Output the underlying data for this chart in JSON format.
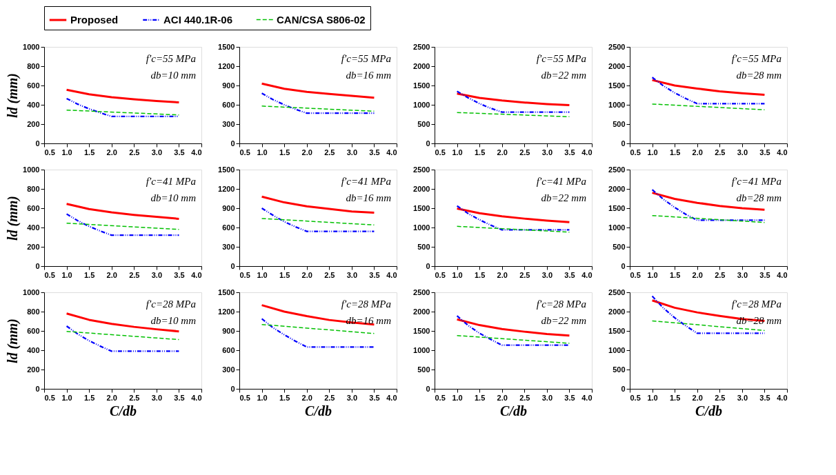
{
  "chart_data": [
    {
      "type": "line",
      "annotations": [
        "f′c=55 MPa",
        "db=10 mm"
      ],
      "ylabel": "ld (mm)",
      "xlim": [
        0.5,
        4.0
      ],
      "xticks": [
        0.5,
        {
          "value": 1,
          "label": "1.0"
        },
        1.5,
        {
          "value": 2,
          "label": "2.0"
        },
        2.5,
        {
          "value": 3,
          "label": "3.0"
        },
        3.5,
        {
          "value": 4,
          "label": "4.0"
        }
      ],
      "ylim": [
        0,
        1000
      ],
      "yticks": [
        0,
        200,
        400,
        600,
        800,
        1000
      ],
      "grid": false,
      "legend": "top",
      "marker": "none",
      "series": [
        {
          "name": "Proposed",
          "color": "#ff0000",
          "line_style": "solid",
          "x": [
            1.0,
            1.5,
            2.0,
            2.5,
            3.0,
            3.5
          ],
          "values": [
            555,
            509,
            479,
            457,
            439,
            425
          ]
        },
        {
          "name": "ACI 440.1R-06",
          "color": "#0000ff",
          "line_style": "dashdot",
          "x": [
            1.0,
            1.25,
            1.5,
            1.75,
            2.0,
            3.5
          ],
          "values": [
            465,
            406,
            358,
            317,
            280,
            280
          ]
        },
        {
          "name": "CAN/CSA S806-02",
          "color": "#00c000",
          "line_style": "dashed",
          "x": [
            1.0,
            3.5
          ],
          "values": [
            345,
            295
          ]
        }
      ]
    },
    {
      "type": "line",
      "annotations": [
        "f′c=55 MPa",
        "db=16 mm"
      ],
      "xlim": [
        0.5,
        4.0
      ],
      "xticks": [
        0.5,
        {
          "value": 1,
          "label": "1.0"
        },
        1.5,
        {
          "value": 2,
          "label": "2.0"
        },
        2.5,
        {
          "value": 3,
          "label": "3.0"
        },
        3.5,
        {
          "value": 4,
          "label": "4.0"
        }
      ],
      "ylim": [
        0,
        1500
      ],
      "yticks": [
        0,
        300,
        600,
        900,
        1200,
        1500
      ],
      "grid": false,
      "marker": "none",
      "series": [
        {
          "name": "Proposed",
          "color": "#ff0000",
          "line_style": "solid",
          "x": [
            1.0,
            1.5,
            2.0,
            2.5,
            3.0,
            3.5
          ],
          "values": [
            930,
            850,
            800,
            770,
            740,
            710
          ]
        },
        {
          "name": "ACI 440.1R-06",
          "color": "#0000ff",
          "line_style": "dashdot",
          "x": [
            1.0,
            1.25,
            1.5,
            1.75,
            2.0,
            3.5
          ],
          "values": [
            780,
            680,
            600,
            530,
            470,
            470
          ]
        },
        {
          "name": "CAN/CSA S806-02",
          "color": "#00c000",
          "line_style": "dashed",
          "x": [
            1.0,
            3.5
          ],
          "values": [
            580,
            500
          ]
        }
      ]
    },
    {
      "type": "line",
      "annotations": [
        "f′c=55 MPa",
        "db=22 mm"
      ],
      "xlim": [
        0.5,
        4.0
      ],
      "xticks": [
        0.5,
        {
          "value": 1,
          "label": "1.0"
        },
        1.5,
        {
          "value": 2,
          "label": "2.0"
        },
        2.5,
        {
          "value": 3,
          "label": "3.0"
        },
        3.5,
        {
          "value": 4,
          "label": "4.0"
        }
      ],
      "ylim": [
        0,
        2500
      ],
      "yticks": [
        0,
        500,
        1000,
        1500,
        2000,
        2500
      ],
      "grid": false,
      "marker": "none",
      "series": [
        {
          "name": "Proposed",
          "color": "#ff0000",
          "line_style": "solid",
          "x": [
            1.0,
            1.5,
            2.0,
            2.5,
            3.0,
            3.5
          ],
          "values": [
            1290,
            1180,
            1110,
            1060,
            1020,
            990
          ]
        },
        {
          "name": "ACI 440.1R-06",
          "color": "#0000ff",
          "line_style": "dashdot",
          "x": [
            1.0,
            1.25,
            1.5,
            1.75,
            2.0,
            3.5
          ],
          "values": [
            1350,
            1180,
            1030,
            910,
            810,
            810
          ]
        },
        {
          "name": "CAN/CSA S806-02",
          "color": "#00c000",
          "line_style": "dashed",
          "x": [
            1.0,
            3.5
          ],
          "values": [
            800,
            690
          ]
        }
      ]
    },
    {
      "type": "line",
      "annotations": [
        "f′c=55 MPa",
        "db=28 mm"
      ],
      "xlim": [
        0.5,
        4.0
      ],
      "xticks": [
        0.5,
        {
          "value": 1,
          "label": "1.0"
        },
        1.5,
        {
          "value": 2,
          "label": "2.0"
        },
        2.5,
        {
          "value": 3,
          "label": "3.0"
        },
        3.5,
        {
          "value": 4,
          "label": "4.0"
        }
      ],
      "ylim": [
        0,
        2500
      ],
      "yticks": [
        0,
        500,
        1000,
        1500,
        2000,
        2500
      ],
      "grid": false,
      "marker": "none",
      "series": [
        {
          "name": "Proposed",
          "color": "#ff0000",
          "line_style": "solid",
          "x": [
            1.0,
            1.5,
            2.0,
            2.5,
            3.0,
            3.5
          ],
          "values": [
            1640,
            1500,
            1420,
            1350,
            1300,
            1260
          ]
        },
        {
          "name": "ACI 440.1R-06",
          "color": "#0000ff",
          "line_style": "dashdot",
          "x": [
            1.0,
            1.25,
            1.5,
            1.75,
            2.0,
            3.5
          ],
          "values": [
            1710,
            1490,
            1310,
            1160,
            1030,
            1030
          ]
        },
        {
          "name": "CAN/CSA S806-02",
          "color": "#00c000",
          "line_style": "dashed",
          "x": [
            1.0,
            3.5
          ],
          "values": [
            1020,
            870
          ]
        }
      ]
    },
    {
      "type": "line",
      "annotations": [
        "f′c=41 MPa",
        "db=10 mm"
      ],
      "ylabel": "ld (mm)",
      "xlim": [
        0.5,
        4.0
      ],
      "xticks": [
        0.5,
        {
          "value": 1,
          "label": "1.0"
        },
        1.5,
        {
          "value": 2,
          "label": "2.0"
        },
        2.5,
        {
          "value": 3,
          "label": "3.0"
        },
        3.5,
        {
          "value": 4,
          "label": "4.0"
        }
      ],
      "ylim": [
        0,
        1000
      ],
      "yticks": [
        0,
        200,
        400,
        600,
        800,
        1000
      ],
      "grid": false,
      "marker": "none",
      "series": [
        {
          "name": "Proposed",
          "color": "#ff0000",
          "line_style": "solid",
          "x": [
            1.0,
            1.5,
            2.0,
            2.5,
            3.0,
            3.5
          ],
          "values": [
            645,
            591,
            557,
            531,
            510,
            490
          ]
        },
        {
          "name": "ACI 440.1R-06",
          "color": "#0000ff",
          "line_style": "dashdot",
          "x": [
            1.0,
            1.25,
            1.5,
            1.75,
            2.0,
            3.5
          ],
          "values": [
            540,
            470,
            412,
            364,
            320,
            320
          ]
        },
        {
          "name": "CAN/CSA S806-02",
          "color": "#00c000",
          "line_style": "dashed",
          "x": [
            1.0,
            3.5
          ],
          "values": [
            445,
            380
          ]
        }
      ]
    },
    {
      "type": "line",
      "annotations": [
        "f′c=41 MPa",
        "db=16 mm"
      ],
      "xlim": [
        0.5,
        4.0
      ],
      "xticks": [
        0.5,
        {
          "value": 1,
          "label": "1.0"
        },
        1.5,
        {
          "value": 2,
          "label": "2.0"
        },
        2.5,
        {
          "value": 3,
          "label": "3.0"
        },
        3.5,
        {
          "value": 4,
          "label": "4.0"
        }
      ],
      "ylim": [
        0,
        1500
      ],
      "yticks": [
        0,
        300,
        600,
        900,
        1200,
        1500
      ],
      "grid": false,
      "marker": "none",
      "series": [
        {
          "name": "Proposed",
          "color": "#ff0000",
          "line_style": "solid",
          "x": [
            1.0,
            1.5,
            2.0,
            2.5,
            3.0,
            3.5
          ],
          "values": [
            1080,
            990,
            930,
            890,
            850,
            830
          ]
        },
        {
          "name": "ACI 440.1R-06",
          "color": "#0000ff",
          "line_style": "dashdot",
          "x": [
            1.0,
            1.25,
            1.5,
            1.75,
            2.0,
            3.5
          ],
          "values": [
            900,
            790,
            690,
            610,
            540,
            540
          ]
        },
        {
          "name": "CAN/CSA S806-02",
          "color": "#00c000",
          "line_style": "dashed",
          "x": [
            1.0,
            3.5
          ],
          "values": [
            740,
            640
          ]
        }
      ]
    },
    {
      "type": "line",
      "annotations": [
        "f′c=41 MPa",
        "db=22 mm"
      ],
      "xlim": [
        0.5,
        4.0
      ],
      "xticks": [
        0.5,
        {
          "value": 1,
          "label": "1.0"
        },
        1.5,
        {
          "value": 2,
          "label": "2.0"
        },
        2.5,
        {
          "value": 3,
          "label": "3.0"
        },
        3.5,
        {
          "value": 4,
          "label": "4.0"
        }
      ],
      "ylim": [
        0,
        2500
      ],
      "yticks": [
        0,
        500,
        1000,
        1500,
        2000,
        2500
      ],
      "grid": false,
      "marker": "none",
      "series": [
        {
          "name": "Proposed",
          "color": "#ff0000",
          "line_style": "solid",
          "x": [
            1.0,
            1.5,
            2.0,
            2.5,
            3.0,
            3.5
          ],
          "values": [
            1490,
            1370,
            1290,
            1230,
            1180,
            1140
          ]
        },
        {
          "name": "ACI 440.1R-06",
          "color": "#0000ff",
          "line_style": "dashdot",
          "x": [
            1.0,
            1.25,
            1.5,
            1.75,
            2.0,
            3.5
          ],
          "values": [
            1560,
            1360,
            1200,
            1060,
            940,
            940
          ]
        },
        {
          "name": "CAN/CSA S806-02",
          "color": "#00c000",
          "line_style": "dashed",
          "x": [
            1.0,
            3.5
          ],
          "values": [
            1030,
            880
          ]
        }
      ]
    },
    {
      "type": "line",
      "annotations": [
        "f′c=41 MPa",
        "db=28 mm"
      ],
      "xlim": [
        0.5,
        4.0
      ],
      "xticks": [
        0.5,
        {
          "value": 1,
          "label": "1.0"
        },
        1.5,
        {
          "value": 2,
          "label": "2.0"
        },
        2.5,
        {
          "value": 3,
          "label": "3.0"
        },
        3.5,
        {
          "value": 4,
          "label": "4.0"
        }
      ],
      "ylim": [
        0,
        2500
      ],
      "yticks": [
        0,
        500,
        1000,
        1500,
        2000,
        2500
      ],
      "grid": false,
      "marker": "none",
      "series": [
        {
          "name": "Proposed",
          "color": "#ff0000",
          "line_style": "solid",
          "x": [
            1.0,
            1.5,
            2.0,
            2.5,
            3.0,
            3.5
          ],
          "values": [
            1900,
            1740,
            1640,
            1560,
            1500,
            1460
          ]
        },
        {
          "name": "ACI 440.1R-06",
          "color": "#0000ff",
          "line_style": "dashdot",
          "x": [
            1.0,
            1.25,
            1.5,
            1.75,
            2.0,
            3.5
          ],
          "values": [
            1980,
            1730,
            1520,
            1340,
            1190,
            1190
          ]
        },
        {
          "name": "CAN/CSA S806-02",
          "color": "#00c000",
          "line_style": "dashed",
          "x": [
            1.0,
            3.5
          ],
          "values": [
            1310,
            1130
          ]
        }
      ]
    },
    {
      "type": "line",
      "annotations": [
        "f′c=28 MPa",
        "db=10 mm"
      ],
      "ylabel": "ld (mm)",
      "xlabel": "C/db",
      "xlim": [
        0.5,
        4.0
      ],
      "xticks": [
        0.5,
        {
          "value": 1,
          "label": "1.0"
        },
        1.5,
        {
          "value": 2,
          "label": "2.0"
        },
        2.5,
        {
          "value": 3,
          "label": "3.0"
        },
        3.5,
        {
          "value": 4,
          "label": "4.0"
        }
      ],
      "ylim": [
        0,
        1000
      ],
      "yticks": [
        0,
        200,
        400,
        600,
        800,
        1000
      ],
      "grid": false,
      "marker": "none",
      "series": [
        {
          "name": "Proposed",
          "color": "#ff0000",
          "line_style": "solid",
          "x": [
            1.0,
            1.5,
            2.0,
            2.5,
            3.0,
            3.5
          ],
          "values": [
            780,
            715,
            673,
            642,
            617,
            595
          ]
        },
        {
          "name": "ACI 440.1R-06",
          "color": "#0000ff",
          "line_style": "dashdot",
          "x": [
            1.0,
            1.25,
            1.5,
            1.75,
            2.0,
            3.5
          ],
          "values": [
            650,
            567,
            499,
            442,
            390,
            390
          ]
        },
        {
          "name": "CAN/CSA S806-02",
          "color": "#00c000",
          "line_style": "dashed",
          "x": [
            1.0,
            3.5
          ],
          "values": [
            595,
            510
          ]
        }
      ]
    },
    {
      "type": "line",
      "annotations": [
        "f′c=28 MPa",
        "db=16 mm"
      ],
      "xlabel": "C/db",
      "xlim": [
        0.5,
        4.0
      ],
      "xticks": [
        0.5,
        {
          "value": 1,
          "label": "1.0"
        },
        1.5,
        {
          "value": 2,
          "label": "2.0"
        },
        2.5,
        {
          "value": 3,
          "label": "3.0"
        },
        3.5,
        {
          "value": 4,
          "label": "4.0"
        }
      ],
      "ylim": [
        0,
        1500
      ],
      "yticks": [
        0,
        300,
        600,
        900,
        1200,
        1500
      ],
      "grid": false,
      "marker": "none",
      "series": [
        {
          "name": "Proposed",
          "color": "#ff0000",
          "line_style": "solid",
          "x": [
            1.0,
            1.5,
            2.0,
            2.5,
            3.0,
            3.5
          ],
          "values": [
            1300,
            1200,
            1130,
            1070,
            1030,
            1000
          ]
        },
        {
          "name": "ACI 440.1R-06",
          "color": "#0000ff",
          "line_style": "dashdot",
          "x": [
            1.0,
            1.25,
            1.5,
            1.75,
            2.0,
            3.5
          ],
          "values": [
            1090,
            950,
            840,
            740,
            650,
            650
          ]
        },
        {
          "name": "CAN/CSA S806-02",
          "color": "#00c000",
          "line_style": "dashed",
          "x": [
            1.0,
            3.5
          ],
          "values": [
            1000,
            860
          ]
        }
      ]
    },
    {
      "type": "line",
      "annotations": [
        "f′c=28 MPa",
        "db=22 mm"
      ],
      "xlabel": "C/db",
      "xlim": [
        0.5,
        4.0
      ],
      "xticks": [
        0.5,
        {
          "value": 1,
          "label": "1.0"
        },
        1.5,
        {
          "value": 2,
          "label": "2.0"
        },
        2.5,
        {
          "value": 3,
          "label": "3.0"
        },
        3.5,
        {
          "value": 4,
          "label": "4.0"
        }
      ],
      "ylim": [
        0,
        2500
      ],
      "yticks": [
        0,
        500,
        1000,
        1500,
        2000,
        2500
      ],
      "grid": false,
      "marker": "none",
      "series": [
        {
          "name": "Proposed",
          "color": "#ff0000",
          "line_style": "solid",
          "x": [
            1.0,
            1.5,
            2.0,
            2.5,
            3.0,
            3.5
          ],
          "values": [
            1800,
            1650,
            1550,
            1480,
            1420,
            1380
          ]
        },
        {
          "name": "ACI 440.1R-06",
          "color": "#0000ff",
          "line_style": "dashdot",
          "x": [
            1.0,
            1.25,
            1.5,
            1.75,
            2.0,
            3.5
          ],
          "values": [
            1890,
            1640,
            1440,
            1280,
            1130,
            1130
          ]
        },
        {
          "name": "CAN/CSA S806-02",
          "color": "#00c000",
          "line_style": "dashed",
          "x": [
            1.0,
            3.5
          ],
          "values": [
            1380,
            1180
          ]
        }
      ]
    },
    {
      "type": "line",
      "annotations": [
        "f′c=28 MPa",
        "db=28 mm"
      ],
      "xlabel": "C/db",
      "xlim": [
        0.5,
        4.0
      ],
      "xticks": [
        0.5,
        {
          "value": 1,
          "label": "1.0"
        },
        1.5,
        {
          "value": 2,
          "label": "2.0"
        },
        2.5,
        {
          "value": 3,
          "label": "3.0"
        },
        3.5,
        {
          "value": 4,
          "label": "4.0"
        }
      ],
      "ylim": [
        0,
        2500
      ],
      "yticks": [
        0,
        500,
        1000,
        1500,
        2000,
        2500
      ],
      "grid": false,
      "marker": "none",
      "series": [
        {
          "name": "Proposed",
          "color": "#ff0000",
          "line_style": "solid",
          "x": [
            1.0,
            1.5,
            2.0,
            2.5,
            3.0,
            3.5
          ],
          "values": [
            2290,
            2100,
            1980,
            1890,
            1810,
            1760
          ]
        },
        {
          "name": "ACI 440.1R-06",
          "color": "#0000ff",
          "line_style": "dashdot",
          "x": [
            1.0,
            1.25,
            1.5,
            1.75,
            2.0,
            3.5
          ],
          "values": [
            2400,
            2090,
            1840,
            1630,
            1440,
            1440
          ]
        },
        {
          "name": "CAN/CSA S806-02",
          "color": "#00c000",
          "line_style": "dashed",
          "x": [
            1.0,
            3.5
          ],
          "values": [
            1760,
            1510
          ]
        }
      ]
    }
  ]
}
